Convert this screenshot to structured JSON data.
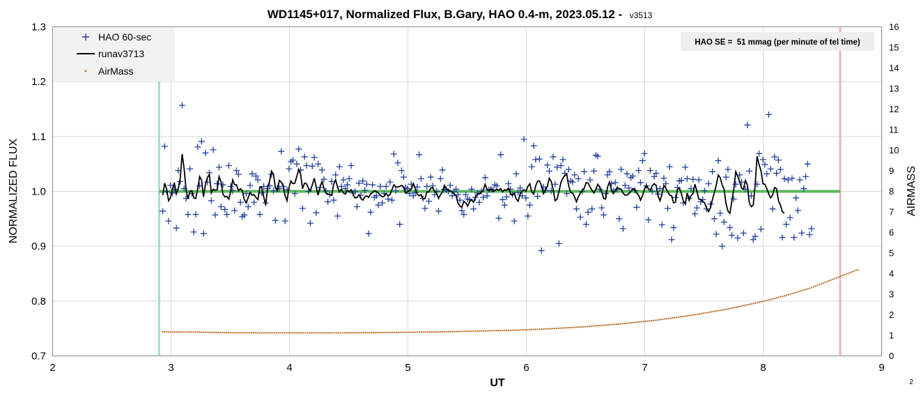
{
  "chart_data": {
    "type": "scatter",
    "title": "WD1145+017, Normalized Flux, B.Gary, HAO 0.4-m, 2023.05.12 -",
    "title_suffix": "v3513",
    "xlabel": "UT",
    "ylabel": "NORMALIZED FLUX",
    "y2label": "AIRMASS",
    "xlim": [
      2,
      9
    ],
    "ylim": [
      0.7,
      1.3
    ],
    "y2lim": [
      0,
      16
    ],
    "x_ticks": [
      "2",
      "3",
      "4",
      "5",
      "6",
      "7",
      "8",
      "9"
    ],
    "y_ticks": [
      "0.7",
      "0.8",
      "0.9",
      "1.0",
      "1.1",
      "1.2",
      "1.3"
    ],
    "y2_ticks": [
      "0",
      "1",
      "2",
      "3",
      "4",
      "5",
      "6",
      "7",
      "8",
      "9",
      "10",
      "11",
      "12",
      "13",
      "14",
      "15",
      "16"
    ],
    "grid": true,
    "legend_position": "top-left",
    "legend": [
      {
        "name": "HAO 60-sec",
        "marker": "plus",
        "color": "#1f3f9f"
      },
      {
        "name": "runav3713",
        "marker": "line",
        "color": "#000000"
      },
      {
        "name": "AirMass",
        "marker": "dot",
        "color": "#b5651d"
      }
    ],
    "annotation": "HAO SE =  51 mmag (per minute of tel time)",
    "corner_label": "2",
    "reference_lines": {
      "normalized_level": {
        "y": 1.0,
        "x_start": 2.9,
        "x_end": 8.65,
        "color": "#5cb85c"
      },
      "start_marker": {
        "x": 2.9,
        "color": "#a8dcc8"
      },
      "end_marker": {
        "x": 8.65,
        "color": "#e8b4b8"
      }
    },
    "flux_series": {
      "name": "HAO 60-sec",
      "x_start": 2.93,
      "x_step": 0.0164,
      "values": [
        0.964,
        1.082,
        1.0,
        0.946,
        1.011,
        0.997,
        1.004,
        0.933,
        1.038,
        1.018,
        1.157,
        1.005,
        0.987,
        0.958,
        1.041,
        0.996,
        0.926,
        0.958,
        1.081,
        1.01,
        1.091,
        0.923,
        1.07,
        1.017,
        1.034,
        0.983,
        1.076,
        0.957,
        1.014,
        1.044,
        0.972,
        1.012,
        0.967,
        0.958,
        1.047,
        1.009,
        1.001,
        0.965,
        1.038,
        1.031,
        0.98,
        0.954,
        0.957,
        0.996,
        0.972,
        1.011,
        1.032,
        0.98,
        1.028,
        1.021,
        0.958,
        0.997,
        1.009,
        0.979,
        1.005,
        1.01,
        1.031,
        1.001,
        0.947,
        1.006,
        1.005,
        1.073,
        1.009,
        0.946,
        1.003,
        1.041,
        1.054,
        1.057,
        0.996,
        1.05,
        1.077,
        1.039,
        0.969,
        1.063,
        1.047,
        1.0,
        0.942,
        1.046,
        1.062,
        0.961,
        1.05,
        1.007,
        1.039,
        1.022,
        1.001,
        0.981,
        0.994,
        1.018,
        0.984,
        1.03,
        0.955,
        1.045,
        1.009,
        1.021,
        1.005,
        1.012,
        1.023,
        1.047,
        0.997,
        1.0,
        0.972,
        1.015,
        0.993,
        1.019,
        1.002,
        1.013,
        0.923,
        0.962,
        1.012,
        0.989,
        0.992,
        0.975,
        1.009,
        0.979,
        0.996,
        1.009,
        0.986,
        1.017,
        0.984,
        1.068,
        1.001,
        1.052,
        0.94,
        1.038,
        1.026,
        1.007,
        1.005,
        0.996,
        1.013,
        0.992,
        0.998,
        1.008,
        1.067,
        1.023,
        0.987,
        0.969,
        1.009,
        0.982,
        1.026,
        1.01,
        0.994,
        1.0,
        0.964,
        1.023,
        1.039,
        1.004,
        1.003,
        1.0,
        1.011,
        0.992,
        0.999,
        1.004,
        0.994,
        0.984,
        0.965,
        0.958,
        0.994,
        0.986,
        0.985,
        1.004,
        0.968,
        0.989,
        0.997,
        0.98,
        1.0,
        0.989,
        1.025,
        0.992,
        1.003,
        1.004,
        1.003,
        1.012,
        1.01,
        0.951,
        1.067,
        0.985,
        0.975,
        0.99,
        1.014,
        1.004,
        0.994,
        0.946,
        1.032,
        0.998,
        1.006,
        0.992,
        1.095,
        0.988,
        0.955,
        0.975,
        1.045,
        1.083,
        1.058,
        0.991,
        1.059,
        0.892,
        1.008,
        1.002,
        1.048,
        1.037,
        1.001,
        1.063,
        1.013,
        1.044,
        0.905,
        1.047,
        1.058,
        1.033,
        0.996,
        1.04,
        1.019,
        1.017,
        1.03,
        0.968,
        1.023,
        0.953,
        1.0,
        1.036,
        0.94,
        0.962,
        1.021,
        0.968,
        1.037,
        1.066,
        1.064,
        1.004,
        0.97,
        0.957,
        0.996,
        1.03,
        1.036,
        1.014,
        1.001,
        1.016,
        1.004,
        0.95,
        1.04,
        0.932,
        1.011,
        1.032,
        1.006,
        1.025,
        1.028,
        1.002,
        0.971,
        1.038,
        1.016,
        1.056,
        1.069,
        1.01,
        0.948,
        1.038,
        1.0,
        1.027,
        1.033,
        0.995,
        1.005,
        0.939,
        1.024,
        1.014,
        0.969,
        1.045,
        0.912,
        0.934,
        0.989,
        1.007,
        1.019,
        1.02,
        0.979,
        1.044,
        1.023,
        0.987,
        1.005,
        1.022,
        0.959,
        0.97,
        1.021,
        0.981,
        0.985,
        1.001,
        0.968,
        1.014,
        0.977,
        1.036,
        0.95,
        0.922,
        1.056,
        0.96,
        0.9,
        0.944,
        1.026,
        1.04,
        0.934,
        0.92,
        0.986,
        1.013,
        0.915,
        1.03,
        1.017,
        0.924,
        1.004,
        1.121,
        1.037,
        0.992,
        0.912,
        0.918,
        1.013,
        1.069,
        0.931,
        1.058,
        1.049,
        1.032,
        1.14,
        1.041,
        0.968,
        1.063,
        1.033,
        1.057,
        1.04,
        0.916,
        1.023,
        0.94,
        1.021,
        0.952,
        1.024,
        0.916,
        0.988,
        0.965,
        1.021,
        0.924,
        1.005,
        1.027,
        1.05,
        0.921,
        0.932
      ]
    },
    "runav_series": {
      "name": "runav3713",
      "x_start": 2.93,
      "x_step": 0.0164,
      "values": [
        0.993,
        1.015,
        1.004,
        0.983,
        0.989,
        1.004,
        1.016,
        0.995,
        1.005,
        1.024,
        1.068,
        1.041,
        1.003,
        0.986,
        1.0,
        1.001,
        0.988,
        0.987,
        1.005,
        1.027,
        1.02,
        0.99,
        1.013,
        1.025,
        1.031,
        0.997,
        1.004,
        1.002,
        1.003,
        1.027,
        1.018,
        0.995,
        0.99,
        0.991,
        0.986,
        1.0,
        1.021,
        1.012,
        1.012,
        1.001,
        1.005,
        1.001,
        0.985,
        0.979,
        0.989,
        0.998,
        0.993,
        0.994,
        0.989,
        0.985,
        1.008,
        1.007,
        0.99,
        0.975,
        1.008,
        1.018,
        1.037,
        1.031,
        1.007,
        1.001,
        1.02,
        1.017,
        1.01,
        0.992,
        0.983,
        1.007,
        1.019,
        1.014,
        1.015,
        1.027,
        1.04,
        1.031,
        1.005,
        1.015,
        1.014,
        1.006,
        1.001,
        1.012,
        1.024,
        1.008,
        0.993,
        1.008,
        1.018,
        1.006,
        0.997,
        0.995,
        0.994,
        0.993,
        1.013,
        1.021,
        1.008,
        0.999,
        1.004,
        0.997,
        0.995,
        1.002,
        0.999,
        1.003,
        0.995,
        0.988,
        0.989,
        0.994,
        0.987,
        0.984,
        0.99,
        0.992,
        0.989,
        0.995,
        0.998,
        1.001,
        1.0,
        0.997,
        0.993,
        0.99,
        0.991,
        0.996,
        0.992,
        0.994,
        1.003,
        1.012,
        1.008,
        1.008,
        1.009,
        1.011,
        1.008,
        0.997,
        0.999,
        1.002,
        1.004,
        1.014,
        1.005,
        0.995,
        0.992,
        0.994,
        0.986,
        0.987,
        0.999,
        0.999,
        1.006,
        1.007,
        1.0,
        0.997,
        0.987,
        0.994,
        0.999,
        1.011,
        1.005,
        1.002,
        1.001,
        0.999,
        0.995,
        0.993,
        0.978,
        0.973,
        0.971,
        0.982,
        0.979,
        0.973,
        0.981,
        0.985,
        0.98,
        0.989,
        0.995,
        0.995,
        0.998,
        1.002,
        1.013,
        1.003,
        1.001,
        1.005,
        1.0,
        1.001,
        1.004,
        1.002,
        1.005,
        0.999,
        1.003,
        1.002,
        1.006,
        0.996,
        0.993,
        0.997,
        0.986,
        0.982,
        0.995,
        1.001,
        1.003,
        1.0,
        1.009,
        1.014,
        0.999,
        0.995,
        1.01,
        1.019,
        1.019,
        1.01,
        0.996,
        1.002,
        1.009,
        1.024,
        1.018,
        1.003,
        0.983,
        0.986,
        1.0,
        1.016,
        1.024,
        1.029,
        1.031,
        1.01,
        0.998,
        0.997,
        0.99,
        0.981,
        0.99,
        0.997,
        1.001,
        1.006,
        1.016,
        1.015,
        1.008,
        1.002,
        0.997,
        1.004,
        1.013,
        1.008,
        0.999,
        0.987,
        0.986,
        1.008,
        1.017,
        1.003,
        0.996,
        1.001,
        1.007,
        1.005,
        1.004,
        0.997,
        0.993,
        0.993,
        0.996,
        1.0,
        1.005,
        1.004,
        0.997,
        0.993,
        0.984,
        0.992,
        1.004,
        1.011,
        1.005,
        1.002,
        1.01,
        1.014,
        1.011,
        0.992,
        0.983,
        0.994,
        1.011,
        1.006,
        0.999,
        0.993,
        0.992,
        0.979,
        0.98,
        1.004,
        1.006,
        0.996,
        0.983,
        0.977,
        0.997,
        0.984,
        0.992,
        0.996,
        1.013,
        1.0,
        0.986,
        0.985,
        0.982,
        0.979,
        0.969,
        0.963,
        0.97,
        0.985,
        0.998,
        1.012,
        1.03,
        1.025,
        1.012,
        1.004,
        0.978,
        0.964,
        0.96,
        0.983,
        1.004,
        1.036,
        1.028,
        1.018,
        1.006,
        1.004,
        1.02,
        1.012,
        0.979,
        0.972,
        0.975,
        1.011,
        1.064,
        1.049,
        1.038,
        1.014,
        1.013,
        1.005,
        0.995,
        0.988,
        0.993,
        1.007,
        1.005,
        0.983,
        0.975,
        0.963,
        0.96
      ]
    },
    "airmass": {
      "name": "AirMass",
      "axis": "y2",
      "x": [
        2.93,
        3.2,
        3.5,
        3.8,
        4.1,
        4.4,
        4.7,
        5.0,
        5.3,
        5.6,
        5.9,
        6.2,
        6.5,
        6.8,
        7.1,
        7.4,
        7.7,
        8.0,
        8.2,
        8.4,
        8.6,
        8.8
      ],
      "values": [
        1.17,
        1.16,
        1.13,
        1.12,
        1.12,
        1.12,
        1.13,
        1.15,
        1.17,
        1.21,
        1.25,
        1.32,
        1.42,
        1.56,
        1.74,
        1.98,
        2.28,
        2.65,
        2.95,
        3.3,
        3.75,
        4.2
      ]
    }
  }
}
